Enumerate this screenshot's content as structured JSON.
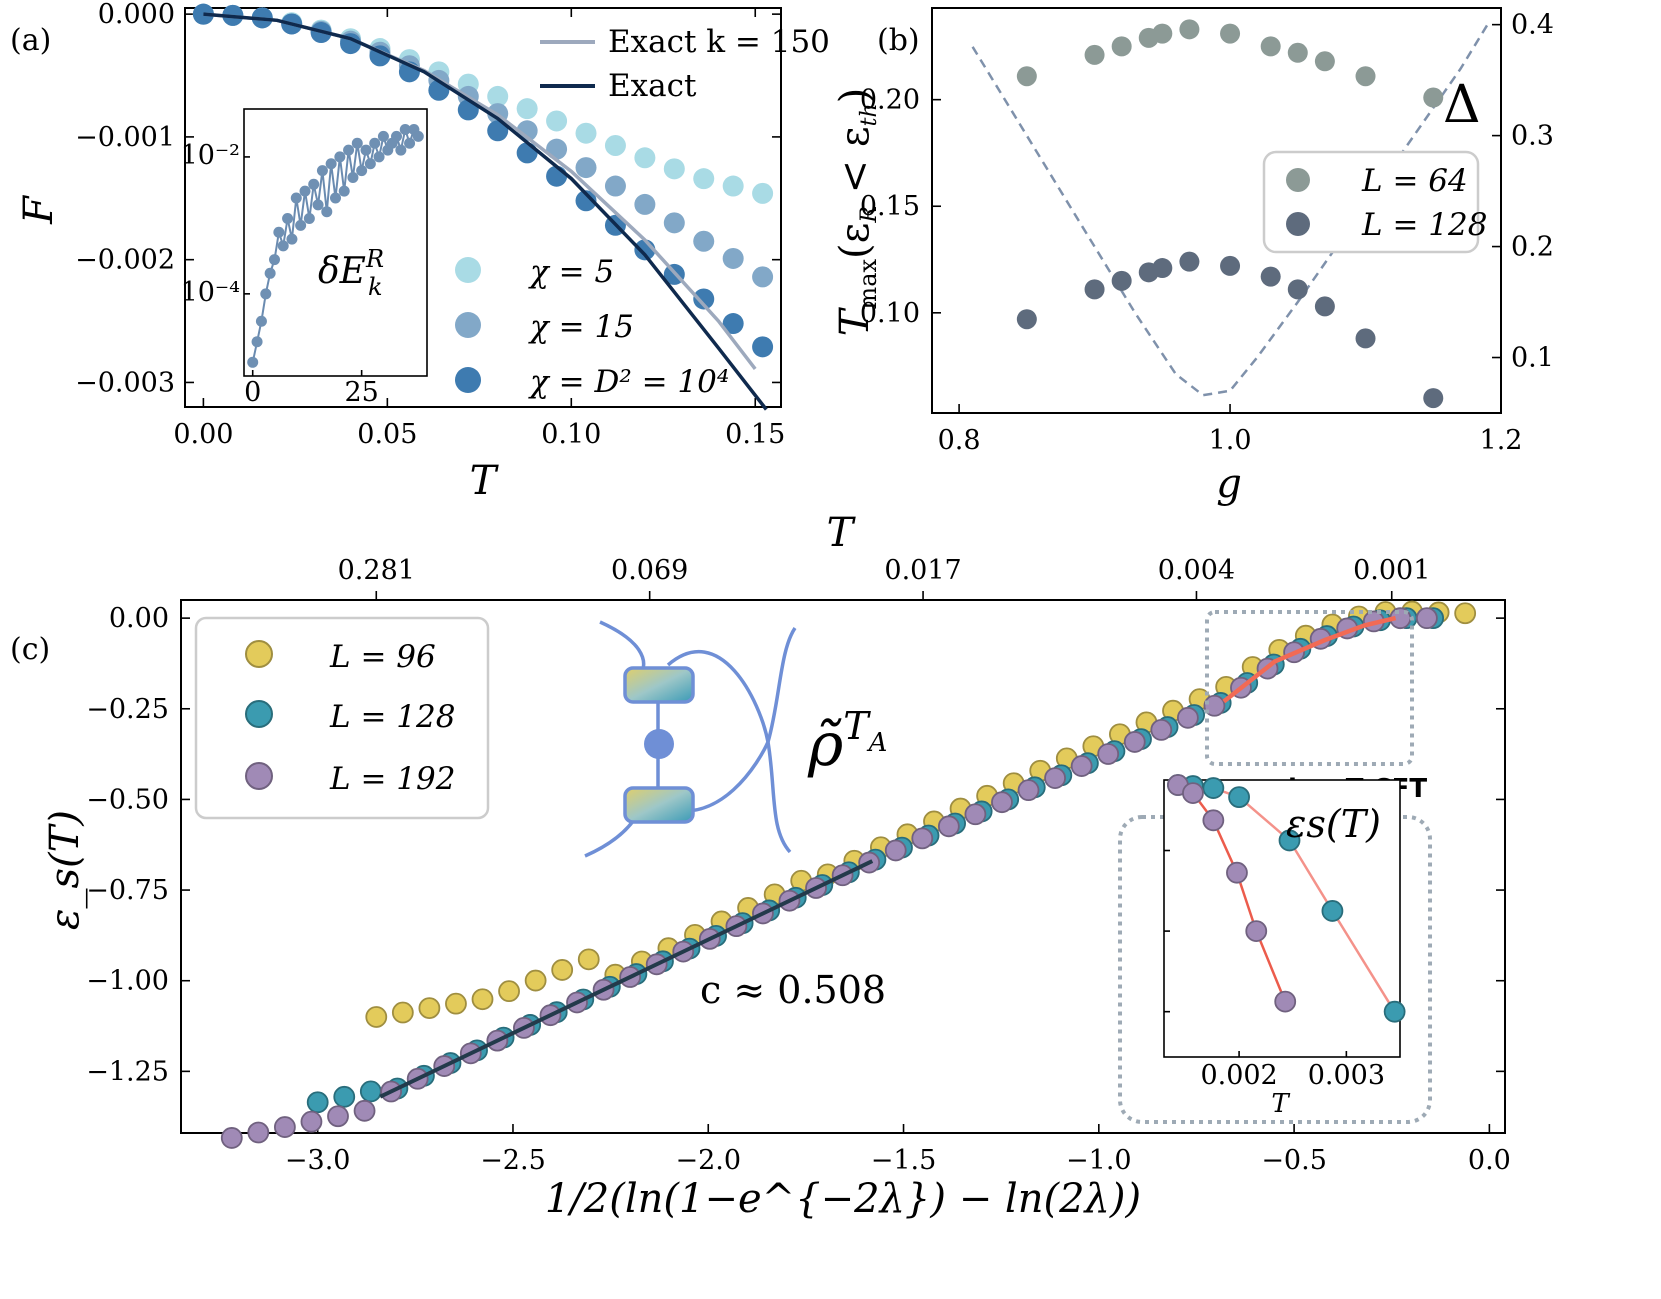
{
  "chart_data": [
    {
      "panel": "(a)",
      "type": "line",
      "xlabel": "T",
      "ylabel": "F",
      "xlim": [
        -0.005,
        0.157
      ],
      "ylim": [
        -0.0032,
        5e-05
      ],
      "xticks": [
        "0.00",
        "0.05",
        "0.10",
        "0.15"
      ],
      "xtick_values": [
        0.0,
        0.05,
        0.1,
        0.15
      ],
      "yticks": [
        "0.000",
        "−0.001",
        "−0.002",
        "−0.003"
      ],
      "ytick_values": [
        0.0,
        -0.001,
        -0.002,
        -0.003
      ],
      "series": [
        {
          "name": "Exact k = 150",
          "kind": "line",
          "color": "#9da9bd",
          "x": [
            0,
            0.02,
            0.04,
            0.06,
            0.08,
            0.1,
            0.12,
            0.14,
            0.15
          ],
          "y": [
            0,
            -5e-05,
            -0.0002,
            -0.00046,
            -0.00082,
            -0.00128,
            -0.00184,
            -0.0025,
            -0.00289
          ]
        },
        {
          "name": "Exact",
          "kind": "line",
          "color": "#0f2a4e",
          "x": [
            0,
            0.02,
            0.04,
            0.06,
            0.08,
            0.1,
            0.12,
            0.14,
            0.153
          ],
          "y": [
            0,
            -5e-05,
            -0.0002,
            -0.00047,
            -0.00085,
            -0.00134,
            -0.00196,
            -0.00272,
            -0.00322
          ]
        },
        {
          "name": "χ = 5",
          "kind": "scatter",
          "color": "#a9dbe5",
          "x": [
            0,
            0.008,
            0.016,
            0.024,
            0.032,
            0.04,
            0.048,
            0.056,
            0.064,
            0.072,
            0.08,
            0.088,
            0.096,
            0.104,
            0.112,
            0.12,
            0.128,
            0.136,
            0.144,
            0.152
          ],
          "y": [
            0,
            -1e-05,
            -3e-05,
            -7e-05,
            -0.00013,
            -0.0002,
            -0.00028,
            -0.00037,
            -0.00047,
            -0.00057,
            -0.00067,
            -0.00077,
            -0.00087,
            -0.00097,
            -0.00107,
            -0.00117,
            -0.00126,
            -0.00134,
            -0.0014,
            -0.00146
          ]
        },
        {
          "name": "χ = 15",
          "kind": "scatter",
          "color": "#82a8c8",
          "x": [
            0,
            0.008,
            0.016,
            0.024,
            0.032,
            0.04,
            0.048,
            0.056,
            0.064,
            0.072,
            0.08,
            0.088,
            0.096,
            0.104,
            0.112,
            0.12,
            0.128,
            0.136,
            0.144,
            0.152
          ],
          "y": [
            0,
            -1e-05,
            -3e-05,
            -8e-05,
            -0.00014,
            -0.00022,
            -0.00031,
            -0.00042,
            -0.00054,
            -0.00067,
            -0.00081,
            -0.00095,
            -0.0011,
            -0.00125,
            -0.0014,
            -0.00155,
            -0.0017,
            -0.00185,
            -0.00199,
            -0.00214
          ]
        },
        {
          "name": "χ = D² = 10⁴",
          "kind": "scatter",
          "color": "#3e7bb0",
          "x": [
            0,
            0.008,
            0.016,
            0.024,
            0.032,
            0.04,
            0.048,
            0.056,
            0.064,
            0.072,
            0.08,
            0.088,
            0.096,
            0.104,
            0.112,
            0.12,
            0.128,
            0.136,
            0.144,
            0.152
          ],
          "y": [
            0,
            -1e-05,
            -3e-05,
            -8e-05,
            -0.00015,
            -0.00024,
            -0.00034,
            -0.00047,
            -0.00062,
            -0.00078,
            -0.00095,
            -0.00113,
            -0.00132,
            -0.00152,
            -0.00172,
            -0.00192,
            -0.00212,
            -0.00232,
            -0.00252,
            -0.00271
          ]
        }
      ],
      "inset": {
        "label": "δE_k^R",
        "xticks": [
          "0",
          "25"
        ],
        "yticks": [
          "10⁻²",
          "10⁻⁴"
        ],
        "ylog_range": [
          -5.2,
          -1.3
        ],
        "xlim": [
          -2,
          40
        ],
        "k": [
          0,
          1,
          2,
          3,
          4,
          5,
          6,
          7,
          8,
          9,
          10,
          11,
          12,
          13,
          14,
          15,
          16,
          17,
          18,
          19,
          20,
          21,
          22,
          23,
          24,
          25,
          26,
          27,
          28,
          29,
          30,
          31,
          32,
          33,
          34,
          35,
          36,
          37,
          38
        ],
        "log10_value": [
          -5.0,
          -4.7,
          -4.4,
          -4.0,
          -3.7,
          -3.5,
          -3.1,
          -3.3,
          -2.9,
          -3.2,
          -2.6,
          -3.0,
          -2.5,
          -2.9,
          -2.4,
          -2.7,
          -2.2,
          -2.8,
          -2.1,
          -2.6,
          -2.0,
          -2.5,
          -1.9,
          -2.3,
          -1.8,
          -2.2,
          -1.9,
          -2.1,
          -1.8,
          -2.0,
          -1.7,
          -1.9,
          -1.8,
          -1.7,
          -1.9,
          -1.6,
          -1.8,
          -1.6,
          -1.7
        ]
      }
    },
    {
      "panel": "(b)",
      "type": "scatter",
      "xlabel": "g",
      "ylabel": "T_max(ε_R < ε_th)",
      "y2label": "Δ",
      "xlim": [
        0.78,
        1.2
      ],
      "ylim": [
        0.053,
        0.243
      ],
      "y2lim": [
        0.05,
        0.415
      ],
      "xticks": [
        "0.8",
        "1.0",
        "1.2"
      ],
      "xtick_values": [
        0.8,
        1.0,
        1.2
      ],
      "yticks": [
        "0.20",
        "0.15",
        "0.10"
      ],
      "ytick_values": [
        0.2,
        0.15,
        0.1
      ],
      "y2ticks": [
        "0.4",
        "0.3",
        "0.2",
        "0.1"
      ],
      "y2tick_values": [
        0.4,
        0.3,
        0.2,
        0.1
      ],
      "series": [
        {
          "name": "L = 64",
          "color": "#8c9a96",
          "x": [
            0.85,
            0.9,
            0.92,
            0.94,
            0.95,
            0.97,
            1.0,
            1.03,
            1.05,
            1.07,
            1.1,
            1.15
          ],
          "y": [
            0.211,
            0.221,
            0.225,
            0.229,
            0.231,
            0.233,
            0.231,
            0.225,
            0.222,
            0.218,
            0.211,
            0.201
          ]
        },
        {
          "name": "L = 128",
          "color": "#5e6b7d",
          "x": [
            0.85,
            0.9,
            0.92,
            0.94,
            0.95,
            0.97,
            1.0,
            1.03,
            1.05,
            1.07,
            1.1,
            1.15
          ],
          "y": [
            0.097,
            0.111,
            0.115,
            0.119,
            0.121,
            0.124,
            0.122,
            0.117,
            0.111,
            0.103,
            0.088,
            0.06
          ]
        },
        {
          "name": "Δ",
          "kind": "dashed-line",
          "color": "#7f91ab",
          "axis": "right",
          "x": [
            0.81,
            0.85,
            0.89,
            0.93,
            0.96,
            0.98,
            1.0,
            1.02,
            1.05,
            1.09,
            1.13,
            1.17,
            1.19
          ],
          "y": [
            0.38,
            0.3,
            0.22,
            0.14,
            0.085,
            0.066,
            0.07,
            0.1,
            0.15,
            0.22,
            0.29,
            0.36,
            0.4
          ]
        }
      ]
    },
    {
      "panel": "(c)",
      "type": "scatter",
      "xlabel": "1/2(ln(1−e^{−2λ}) − ln(2λ))",
      "ylabel": "ε_s(T)",
      "top_xlabel": "T",
      "top_xticks": [
        "0.281",
        "0.069",
        "0.017",
        "0.004",
        "0.001"
      ],
      "top_xtick_positions": [
        -2.85,
        -2.15,
        -1.45,
        -0.75,
        -0.25
      ],
      "xlim": [
        -3.35,
        0.04
      ],
      "ylim": [
        -1.42,
        0.05
      ],
      "xticks": [
        "−3.0",
        "−2.5",
        "−2.0",
        "−1.5",
        "−1.0",
        "−0.5",
        "0.0"
      ],
      "xtick_values": [
        -3.0,
        -2.5,
        -2.0,
        -1.5,
        -1.0,
        -0.5,
        0.0
      ],
      "yticks": [
        "0.00",
        "−0.25",
        "−0.50",
        "−0.75",
        "−1.00",
        "−1.25"
      ],
      "ytick_values": [
        0.0,
        -0.25,
        -0.5,
        -0.75,
        -1.0,
        -1.25
      ],
      "fit_label": "c ≈ 0.508",
      "fit_line": {
        "x": [
          -2.84,
          -1.58
        ],
        "y": [
          -1.32,
          -0.67
        ],
        "color": "#233a4b"
      },
      "cft_label": "low-T CFT",
      "cft_line": {
        "x": [
          -0.68,
          -0.55,
          -0.42,
          -0.32,
          -0.24
        ],
        "y": [
          -0.23,
          -0.12,
          -0.06,
          -0.02,
          0.0
        ],
        "color": "#f26a55"
      },
      "diagram_label": "ρ̃^{T_A}",
      "series": [
        {
          "name": "L = 96",
          "color": "#e3cb5b"
        },
        {
          "name": "L = 128",
          "color": "#3b9bb0"
        },
        {
          "name": "L = 192",
          "color": "#a08ab6"
        }
      ],
      "inset": {
        "label": "ε_s(T)",
        "xlabel": "T",
        "xticks": [
          "0.002",
          "0.003"
        ],
        "xtick_values": [
          0.002,
          0.003
        ],
        "xlim": [
          0.0013,
          0.0035
        ],
        "ylim": [
          -0.027,
          0.0005
        ],
        "series": [
          {
            "name": "L = 128",
            "color": "#3b9bb0",
            "line_color": "#f4928a",
            "x": [
              0.00143,
              0.00157,
              0.00176,
              0.002,
              0.00247,
              0.00287,
              0.00345
            ],
            "y": [
              0.0,
              -0.0001,
              -0.0003,
              -0.0012,
              -0.0055,
              -0.0125,
              -0.0225
            ]
          },
          {
            "name": "L = 192",
            "color": "#a08ab6",
            "line_color": "#ec5c4c",
            "x": [
              0.00143,
              0.00157,
              0.00176,
              0.00198,
              0.00216,
              0.00243
            ],
            "y": [
              0.0,
              -0.0008,
              -0.0035,
              -0.0087,
              -0.0145,
              -0.0215
            ]
          }
        ]
      }
    }
  ]
}
